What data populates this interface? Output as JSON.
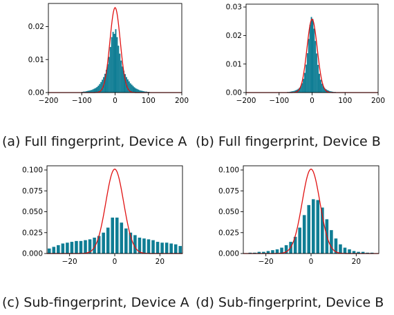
{
  "figure": {
    "captions": [
      "(a) Full fingerprint, Device A",
      "(b) Full fingerprint, Device B",
      "(c) Sub-fingerprint, Device A",
      "(d) Sub-fingerprint, Device B"
    ]
  },
  "colors": {
    "bars": "#0f7d94",
    "curve": "#e01010",
    "axis": "#000000"
  },
  "chart_data": [
    {
      "type": "bar",
      "subtype": "histogram-with-density-curve",
      "title": "",
      "xlabel": "",
      "ylabel": "",
      "xlim": [
        -200,
        200
      ],
      "ylim": [
        0,
        0.027
      ],
      "xticks": [
        -200,
        -100,
        0,
        100,
        200
      ],
      "xtick_labels": [
        "−200",
        "−100",
        "0",
        "100",
        "200"
      ],
      "yticks": [
        0.0,
        0.01,
        0.02
      ],
      "ytick_labels": [
        "0.00",
        "0.01",
        "0.02"
      ],
      "grid": false,
      "histogram": {
        "bin_width": 4,
        "bin_centers": [
          -98,
          -94,
          -90,
          -86,
          -82,
          -78,
          -74,
          -70,
          -66,
          -62,
          -58,
          -54,
          -50,
          -46,
          -42,
          -38,
          -34,
          -30,
          -26,
          -22,
          -18,
          -14,
          -10,
          -6,
          -2,
          2,
          6,
          10,
          14,
          18,
          22,
          26,
          30,
          34,
          38,
          42,
          46,
          50,
          54,
          58,
          62,
          66,
          70,
          74,
          78,
          82,
          86,
          90,
          94,
          98,
          102,
          106
        ],
        "density": [
          0.0002,
          0.0003,
          0.0003,
          0.0004,
          0.0005,
          0.0006,
          0.0007,
          0.0008,
          0.001,
          0.0012,
          0.0014,
          0.0017,
          0.0021,
          0.0026,
          0.0032,
          0.0039,
          0.0047,
          0.0057,
          0.0069,
          0.0086,
          0.0108,
          0.0138,
          0.0168,
          0.0184,
          0.0178,
          0.0192,
          0.0168,
          0.0142,
          0.0118,
          0.0097,
          0.0079,
          0.0066,
          0.0056,
          0.0047,
          0.004,
          0.0034,
          0.0028,
          0.0024,
          0.002,
          0.0016,
          0.0013,
          0.0011,
          0.0009,
          0.0007,
          0.0006,
          0.0005,
          0.0004,
          0.0003,
          0.0003,
          0.0002,
          0.0002,
          0.0001
        ]
      },
      "curve": {
        "type": "normal",
        "mean": 0,
        "std": 15.5
      }
    },
    {
      "type": "bar",
      "subtype": "histogram-with-density-curve",
      "title": "",
      "xlabel": "",
      "ylabel": "",
      "xlim": [
        -200,
        200
      ],
      "ylim": [
        0,
        0.031
      ],
      "xticks": [
        -200,
        -100,
        0,
        100,
        200
      ],
      "xtick_labels": [
        "−200",
        "−100",
        "0",
        "100",
        "200"
      ],
      "yticks": [
        0.0,
        0.01,
        0.02,
        0.03
      ],
      "ytick_labels": [
        "0.00",
        "0.01",
        "0.02",
        "0.03"
      ],
      "grid": false,
      "histogram": {
        "bin_width": 4,
        "bin_centers": [
          -78,
          -74,
          -70,
          -66,
          -62,
          -58,
          -54,
          -50,
          -46,
          -42,
          -38,
          -34,
          -30,
          -26,
          -22,
          -18,
          -14,
          -10,
          -6,
          -2,
          2,
          6,
          10,
          14,
          18,
          22,
          26,
          30,
          34,
          38,
          42,
          46,
          50,
          54,
          58,
          62,
          66,
          70,
          74,
          78,
          82,
          86
        ],
        "density": [
          0.0001,
          0.0002,
          0.0002,
          0.0003,
          0.0004,
          0.0005,
          0.0006,
          0.0008,
          0.001,
          0.0013,
          0.0017,
          0.0023,
          0.0033,
          0.0048,
          0.0069,
          0.0098,
          0.0138,
          0.0188,
          0.0238,
          0.0265,
          0.0258,
          0.0224,
          0.0181,
          0.0137,
          0.0097,
          0.0066,
          0.0045,
          0.0031,
          0.0022,
          0.0016,
          0.0012,
          0.0009,
          0.0007,
          0.0005,
          0.0004,
          0.0003,
          0.0002,
          0.0002,
          0.0001,
          0.0001,
          0.0001,
          0.0001
        ]
      },
      "curve": {
        "type": "normal",
        "mean": 0,
        "std": 15.5
      }
    },
    {
      "type": "bar",
      "subtype": "histogram-with-density-curve",
      "title": "",
      "xlabel": "",
      "ylabel": "",
      "xlim": [
        -30,
        30
      ],
      "ylim": [
        0,
        0.105
      ],
      "xticks": [
        -20,
        0,
        20
      ],
      "xtick_labels": [
        "−20",
        "0",
        "20"
      ],
      "yticks": [
        0.0,
        0.025,
        0.05,
        0.075,
        0.1
      ],
      "ytick_labels": [
        "0.000",
        "0.025",
        "0.050",
        "0.075",
        "0.100"
      ],
      "grid": false,
      "histogram": {
        "bin_width": 1.4,
        "bin_centers": [
          -29,
          -27,
          -25,
          -23,
          -21,
          -19,
          -17,
          -15,
          -13,
          -11,
          -9,
          -7,
          -5,
          -3,
          -1,
          1,
          3,
          5,
          7,
          9,
          11,
          13,
          15,
          17,
          19,
          21,
          23,
          25,
          27,
          29
        ],
        "density": [
          0.006,
          0.008,
          0.01,
          0.012,
          0.013,
          0.014,
          0.015,
          0.015,
          0.016,
          0.017,
          0.019,
          0.021,
          0.025,
          0.031,
          0.043,
          0.043,
          0.037,
          0.03,
          0.025,
          0.022,
          0.019,
          0.018,
          0.017,
          0.016,
          0.014,
          0.013,
          0.013,
          0.012,
          0.011,
          0.009
        ]
      },
      "curve": {
        "type": "normal",
        "mean": 0,
        "std": 3.95
      }
    },
    {
      "type": "bar",
      "subtype": "histogram-with-density-curve",
      "title": "",
      "xlabel": "",
      "ylabel": "",
      "xlim": [
        -30,
        30
      ],
      "ylim": [
        0,
        0.105
      ],
      "xticks": [
        -20,
        0,
        20
      ],
      "xtick_labels": [
        "−20",
        "0",
        "20"
      ],
      "yticks": [
        0.0,
        0.025,
        0.05,
        0.075,
        0.1
      ],
      "ytick_labels": [
        "0.000",
        "0.025",
        "0.050",
        "0.075",
        "0.100"
      ],
      "grid": false,
      "histogram": {
        "bin_width": 1.4,
        "bin_centers": [
          -27,
          -25,
          -23,
          -21,
          -19,
          -17,
          -15,
          -13,
          -11,
          -9,
          -7,
          -5,
          -3,
          -1,
          1,
          3,
          5,
          7,
          9,
          11,
          13,
          15,
          17,
          19,
          21,
          23,
          25,
          27
        ],
        "density": [
          0.001,
          0.001,
          0.002,
          0.002,
          0.003,
          0.004,
          0.005,
          0.007,
          0.01,
          0.014,
          0.02,
          0.031,
          0.046,
          0.058,
          0.065,
          0.064,
          0.055,
          0.041,
          0.028,
          0.018,
          0.011,
          0.007,
          0.005,
          0.003,
          0.002,
          0.002,
          0.001,
          0.001
        ]
      },
      "curve": {
        "type": "normal",
        "mean": 0,
        "std": 3.95
      }
    }
  ]
}
